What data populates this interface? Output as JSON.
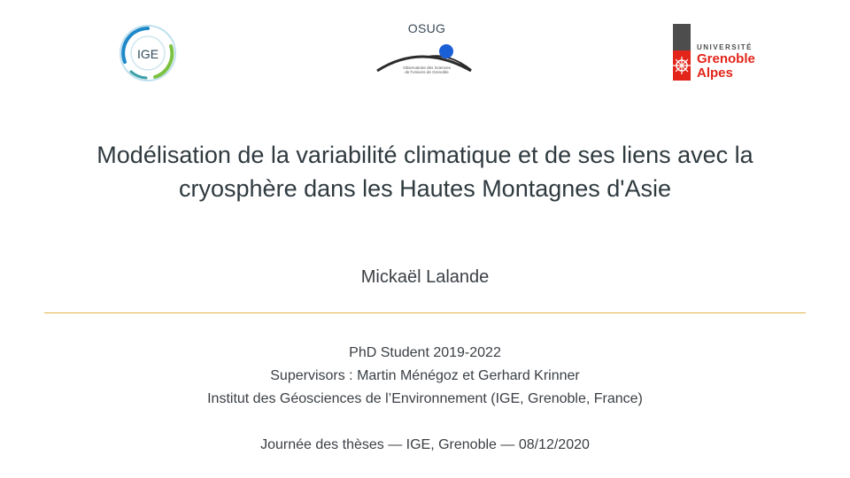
{
  "logos": {
    "left": {
      "text": "IGE",
      "icon": "ige-logo-icon",
      "colors": [
        "#1e88c8",
        "#7cc242",
        "#3aa0a8"
      ]
    },
    "center": {
      "title": "OSUG",
      "subtitle": "Observatoire des Sciences de l'Univers de Grenoble",
      "icon": "osug-logo-icon",
      "colors": [
        "#1a5fd6",
        "#2b2b2b"
      ]
    },
    "right": {
      "line1": "UNIVERSITÉ",
      "line2": "Grenoble",
      "line3": "Alpes",
      "icon": "uga-logo-icon",
      "colors": [
        "#e2241a",
        "#4d4d4d"
      ]
    }
  },
  "title": {
    "line1": "Modélisation de la variabilité climatique et de ses liens avec la",
    "line2": "cryosphère dans les Hautes Montagnes d'Asie"
  },
  "author": "Mickaël Lalande",
  "divider_color": "#e3b34a",
  "info": {
    "role": "PhD Student 2019-2022",
    "supervisors": "Supervisors : Martin Ménégoz et Gerhard Krinner",
    "institute": "Institut des Géosciences de l’Environnement (IGE, Grenoble, France)",
    "event": "Journée des thèses — IGE, Grenoble — 08/12/2020"
  }
}
